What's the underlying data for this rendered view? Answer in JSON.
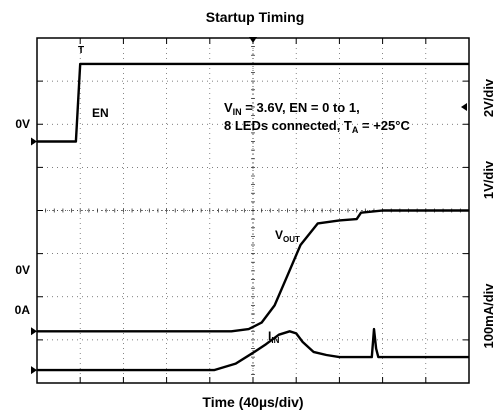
{
  "chart_data": {
    "type": "line",
    "title": "Startup Timing",
    "xlabel": "Time (40µs/div)",
    "grid": true,
    "x_divisions": 10,
    "y_divisions": 8,
    "x_unit_per_div": "40µs",
    "right_scale_labels": [
      "2V/div",
      "1V/div",
      "100mA/div"
    ],
    "left_ground_labels": [
      "0V",
      "0V",
      "0A"
    ],
    "trigger_marker": "T",
    "annotation": {
      "line1_prefix": "V",
      "line1_sub": "IN",
      "line1_rest": " = 3.6V, EN = 0 to 1,",
      "line2_prefix": "8 LEDs connected, T",
      "line2_sub": "A",
      "line2_rest": " = +25°C"
    },
    "series": [
      {
        "name": "EN",
        "label_main": "EN",
        "label_sub": "",
        "ground_div": 5.6,
        "div_per_unit": 0.5,
        "unit": "V",
        "x": [
          0,
          0.9,
          1.0,
          10
        ],
        "y": [
          0,
          0,
          3.6,
          3.6
        ]
      },
      {
        "name": "VOUT",
        "label_main": "V",
        "label_sub": "OUT",
        "ground_div": 1.2,
        "div_per_unit": 1,
        "unit": "V",
        "x": [
          0,
          4.5,
          4.9,
          5.2,
          5.5,
          5.8,
          6.1,
          6.5,
          7.0,
          7.4,
          7.5,
          8.0,
          10
        ],
        "y": [
          0,
          0,
          0.05,
          0.2,
          0.6,
          1.3,
          2.0,
          2.5,
          2.57,
          2.6,
          2.75,
          2.8,
          2.8
        ]
      },
      {
        "name": "IIN",
        "label_main": "I",
        "label_sub": "IN",
        "ground_div": 0.3,
        "div_per_unit": 1,
        "unit": "x100mA",
        "x": [
          0,
          4.1,
          4.6,
          5.0,
          5.3,
          5.6,
          5.85,
          6.0,
          6.15,
          6.4,
          6.7,
          7.0,
          7.75,
          7.8,
          7.85,
          7.9,
          8.1,
          10
        ],
        "y": [
          0,
          0,
          0.15,
          0.4,
          0.6,
          0.82,
          0.9,
          0.85,
          0.65,
          0.42,
          0.35,
          0.3,
          0.3,
          0.95,
          0.5,
          0.3,
          0.3,
          0.3
        ]
      }
    ]
  }
}
